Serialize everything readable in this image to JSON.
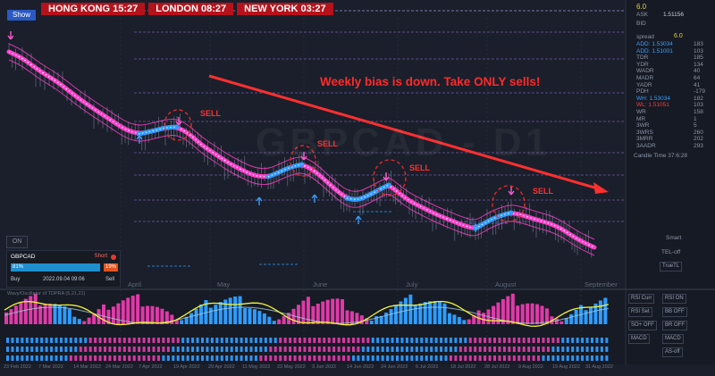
{
  "clocks": [
    {
      "city": "HONG KONG",
      "time": "15:27"
    },
    {
      "city": "LONDON",
      "time": "08:27"
    },
    {
      "city": "NEW YORK",
      "time": "03:27"
    }
  ],
  "show_button": "Show",
  "price_panel": {
    "header_value": "6.0",
    "ask_label": "ASK",
    "ask_value": "1.51156",
    "bid_label": "BID",
    "spread_label": "spread",
    "spread_value": "6.0",
    "rows": [
      {
        "label": "ADD: 1.53034",
        "value": "183",
        "color": "#3aa0ff"
      },
      {
        "label": "ADD: 1.51001",
        "value": "103",
        "color": "#3aa0ff"
      },
      {
        "label": "TDR",
        "value": "185",
        "color": "#8d95a6"
      },
      {
        "label": "YDR",
        "value": "134",
        "color": "#8d95a6"
      },
      {
        "label": "WADR",
        "value": "40",
        "color": "#8d95a6"
      },
      {
        "label": "MADR",
        "value": "64",
        "color": "#8d95a6"
      },
      {
        "label": "YADR",
        "value": "41",
        "color": "#8d95a6"
      },
      {
        "label": "PDH",
        "value": "-179",
        "color": "#8d95a6"
      },
      {
        "label": "WH: 1.53034",
        "value": "182",
        "color": "#3aa0ff"
      },
      {
        "label": "WL: 1.51051",
        "value": "103",
        "color": "#ff3a3a"
      },
      {
        "label": "WR",
        "value": "158",
        "color": "#8d95a6"
      },
      {
        "label": "MR",
        "value": "1",
        "color": "#8d95a6"
      },
      {
        "label": "3WR",
        "value": "5",
        "color": "#8d95a6"
      },
      {
        "label": "3WRS",
        "value": "260",
        "color": "#8d95a6"
      },
      {
        "label": "3MRR",
        "value": "202",
        "color": "#8d95a6"
      },
      {
        "label": "3AADR",
        "value": "293",
        "color": "#8d95a6"
      }
    ],
    "candle_time": "Candle Time 37:6:28"
  },
  "headline": "Weekly bias is down. Take ONLY sells!",
  "sell_label": "SELL",
  "watermark": "GBPCAD - D1",
  "months": [
    "April",
    "May",
    "June",
    "July",
    "August",
    "September"
  ],
  "on_button": "ON",
  "widget": {
    "pair": "GBPCAD",
    "status": "Short",
    "buy_pct": "81%",
    "sell_pct": "19%",
    "buy_label": "Buy",
    "date": "2022.09.04 09:06",
    "sell_label": "Sell"
  },
  "side_labels": [
    "Smart",
    "TEL-off",
    "TrueTL"
  ],
  "oscillator": {
    "title": "Wavy/Oscillator of TDPRA (5,21,21)"
  },
  "sub_buttons": [
    [
      "RSI Curr",
      "RSI ON"
    ],
    [
      "RSI Set",
      "BB OFF"
    ],
    [
      "SO+ OFF",
      "BR OFF"
    ],
    [
      "MACD",
      "MACD"
    ],
    [
      "",
      "AS-off"
    ]
  ],
  "date_labels": [
    "23 Feb 2022",
    "7 Mar 2022",
    "14 Mar 2022",
    "24 Mar 2022",
    "7 Apr 2022",
    "19 Apr 2022",
    "29 Apr 2022",
    "11 May 2022",
    "23 May 2022",
    "3 Jun 2022",
    "14 Jun 2022",
    "24 Jun 2022",
    "6 Jul 2022",
    "18 Jul 2022",
    "28 Jul 2022",
    "9 Aug 2022",
    "19 Aug 2022",
    "31 Aug 2022"
  ],
  "colors": {
    "background": "#1a1f2b",
    "ribbon_down": "#ff3ec8",
    "ribbon_up": "#2e9cff",
    "candle": "#7a8193",
    "arrow": "#ff3030",
    "sell_circle": "#e02a2a",
    "histogram_up": "#2e9cff",
    "histogram_down": "#e03aa8",
    "signal": "#f2f23a",
    "slow": "#a8cdd6"
  }
}
